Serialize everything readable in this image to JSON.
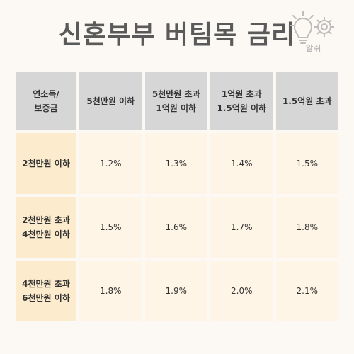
{
  "title": "신혼부부 버팀목 금리",
  "logo_text": "알쉬",
  "logo_icon": "lightbulb-gear-icon",
  "colors": {
    "background": "#FCF8F3",
    "header": "#D6D6D6",
    "row_header": "#FDEBCD",
    "cell": "#FFF5E6",
    "title": "#5A5A5A"
  },
  "table": {
    "corner": "연소득/\n보증금",
    "columns": [
      "5천만원 이하",
      "5천만원 초과\n1억원 이하",
      "1억원 초과\n1.5억원 이하",
      "1.5억원 초과"
    ],
    "rows": [
      {
        "label": "2천만원 이하",
        "values": [
          "1.2%",
          "1.3%",
          "1.4%",
          "1.5%"
        ]
      },
      {
        "label": "2천만원 초과\n4천만원 이하",
        "values": [
          "1.5%",
          "1.6%",
          "1.7%",
          "1.8%"
        ]
      },
      {
        "label": "4천만원 초과\n6천만원 이하",
        "values": [
          "1.8%",
          "1.9%",
          "2.0%",
          "2.1%"
        ]
      }
    ]
  }
}
